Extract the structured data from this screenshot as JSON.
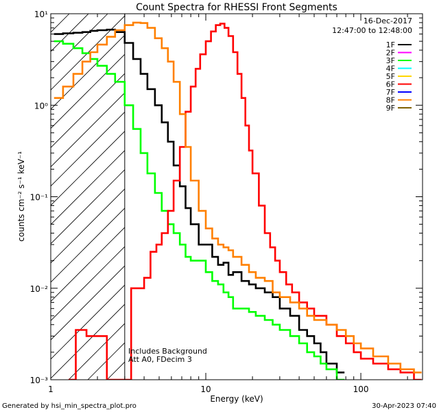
{
  "chart_data": {
    "type": "line",
    "title": "Count Spectra for RHESSI Front Segments",
    "xlabel": "Energy (keV)",
    "ylabel": "counts cm⁻² s⁻¹ keV⁻¹",
    "xscale": "log",
    "yscale": "log",
    "xlim": [
      1,
      250
    ],
    "ylim": [
      0.001,
      10
    ],
    "x_ticks": [
      {
        "value": 1,
        "label": "1"
      },
      {
        "value": 10,
        "label": "10"
      },
      {
        "value": 100,
        "label": "100"
      }
    ],
    "y_ticks": [
      {
        "value": 0.001,
        "label": "10⁻³"
      },
      {
        "value": 0.01,
        "label": "10⁻²"
      },
      {
        "value": 0.1,
        "label": "10⁻¹"
      },
      {
        "value": 1,
        "label": "10⁰"
      },
      {
        "value": 10,
        "label": "10¹"
      }
    ],
    "date": "16-Dec-2017",
    "time_range": "12:47:00 to 12:48:00",
    "annotations": [
      "Includes Background",
      "Att A0, FDecim 3"
    ],
    "excluded_region_keV": [
      1,
      3
    ],
    "legend_position": "top-right",
    "legend": [
      {
        "name": "1F",
        "color": "#000000"
      },
      {
        "name": "2F",
        "color": "#ff00ff"
      },
      {
        "name": "3F",
        "color": "#00ff00"
      },
      {
        "name": "4F",
        "color": "#00ffff"
      },
      {
        "name": "5F",
        "color": "#ffd700"
      },
      {
        "name": "6F",
        "color": "#ff0000"
      },
      {
        "name": "7F",
        "color": "#0000ff"
      },
      {
        "name": "8F",
        "color": "#ff8000"
      },
      {
        "name": "9F",
        "color": "#806000"
      }
    ],
    "series": [
      {
        "name": "1F",
        "color": "#000000",
        "x": [
          1.05,
          1.2,
          1.4,
          1.6,
          1.8,
          2.0,
          2.3,
          2.6,
          3.0,
          3.4,
          3.8,
          4.2,
          4.7,
          5.2,
          5.7,
          6.2,
          6.8,
          7.4,
          8,
          9,
          10,
          11,
          12,
          13,
          14,
          15,
          17,
          19,
          21,
          24,
          27,
          30,
          35,
          40,
          45,
          50,
          55,
          60,
          70
        ],
        "y": [
          6,
          6.1,
          6.2,
          6.3,
          6.5,
          6.6,
          6.7,
          6.3,
          4.8,
          3.2,
          2.2,
          1.5,
          1.0,
          0.65,
          0.4,
          0.22,
          0.13,
          0.075,
          0.05,
          0.03,
          0.03,
          0.022,
          0.018,
          0.019,
          0.014,
          0.015,
          0.012,
          0.011,
          0.01,
          0.009,
          0.008,
          0.006,
          0.005,
          0.0035,
          0.003,
          0.0025,
          0.002,
          0.0015,
          0.0012
        ]
      },
      {
        "name": "3F",
        "color": "#00ff00",
        "x": [
          1.05,
          1.2,
          1.4,
          1.6,
          1.8,
          2.0,
          2.3,
          2.6,
          3.0,
          3.4,
          3.8,
          4.2,
          4.7,
          5.2,
          5.7,
          6.2,
          6.8,
          7.4,
          8,
          9,
          10,
          11,
          12,
          13,
          14,
          15,
          17,
          19,
          21,
          24,
          27,
          30,
          35,
          40,
          45,
          50,
          55,
          60,
          70
        ],
        "y": [
          5,
          4.7,
          4.2,
          3.7,
          3.2,
          2.7,
          2.2,
          1.8,
          1.0,
          0.55,
          0.3,
          0.18,
          0.11,
          0.07,
          0.05,
          0.04,
          0.03,
          0.022,
          0.02,
          0.02,
          0.015,
          0.012,
          0.011,
          0.009,
          0.008,
          0.006,
          0.006,
          0.0055,
          0.005,
          0.0045,
          0.004,
          0.0035,
          0.003,
          0.0025,
          0.002,
          0.0018,
          0.0015,
          0.0013,
          0.001
        ]
      },
      {
        "name": "6F",
        "color": "#ff0000",
        "x": [
          1.3,
          1.45,
          1.55,
          1.7,
          1.85,
          2.0,
          2.3,
          2.6,
          3.0,
          3.3,
          3.6,
          4.0,
          4.4,
          4.8,
          5.2,
          5.7,
          6.2,
          6.8,
          7.4,
          8,
          8.6,
          9.2,
          10,
          10.8,
          11.6,
          12.4,
          13.2,
          14,
          15,
          16,
          17,
          18,
          19,
          20,
          22,
          24,
          26,
          28,
          30,
          33,
          36,
          40,
          45,
          50,
          60,
          70,
          80,
          90,
          100,
          120,
          150,
          180,
          220
        ],
        "y": [
          0.001,
          0.0035,
          0.0035,
          0.003,
          0.003,
          0.003,
          0.001,
          0.001,
          0.001,
          0.01,
          0.01,
          0.013,
          0.025,
          0.03,
          0.04,
          0.07,
          0.15,
          0.35,
          0.85,
          1.6,
          2.5,
          3.6,
          5.0,
          6.4,
          7.5,
          7.8,
          7.0,
          5.7,
          3.8,
          2.2,
          1.2,
          0.6,
          0.32,
          0.18,
          0.08,
          0.04,
          0.028,
          0.02,
          0.015,
          0.011,
          0.009,
          0.007,
          0.006,
          0.005,
          0.004,
          0.003,
          0.0025,
          0.002,
          0.0017,
          0.0015,
          0.0013,
          0.0012,
          0.001
        ]
      },
      {
        "name": "8F",
        "color": "#ff8000",
        "x": [
          1.05,
          1.2,
          1.4,
          1.6,
          1.8,
          2.0,
          2.3,
          2.6,
          3.0,
          3.4,
          3.8,
          4.2,
          4.7,
          5.2,
          5.7,
          6.2,
          6.8,
          7.4,
          8,
          9,
          10,
          11,
          12,
          13,
          14,
          15,
          17,
          19,
          21,
          24,
          27,
          30,
          35,
          40,
          45,
          50,
          60,
          70,
          80,
          90,
          100,
          120,
          150,
          180,
          220
        ],
        "y": [
          1.2,
          1.6,
          2.2,
          3.0,
          3.8,
          4.6,
          5.6,
          6.6,
          7.5,
          8.0,
          7.9,
          7.0,
          5.4,
          4.2,
          3.0,
          1.8,
          0.8,
          0.35,
          0.15,
          0.07,
          0.045,
          0.035,
          0.03,
          0.028,
          0.026,
          0.022,
          0.018,
          0.015,
          0.013,
          0.012,
          0.009,
          0.008,
          0.007,
          0.006,
          0.005,
          0.0045,
          0.004,
          0.0035,
          0.003,
          0.0025,
          0.0022,
          0.0018,
          0.0015,
          0.0013,
          0.0012
        ]
      }
    ]
  },
  "footer": {
    "generated_by": "Generated by hsi_min_spectra_plot.pro",
    "timestamp": "30-Apr-2023 07:40"
  }
}
